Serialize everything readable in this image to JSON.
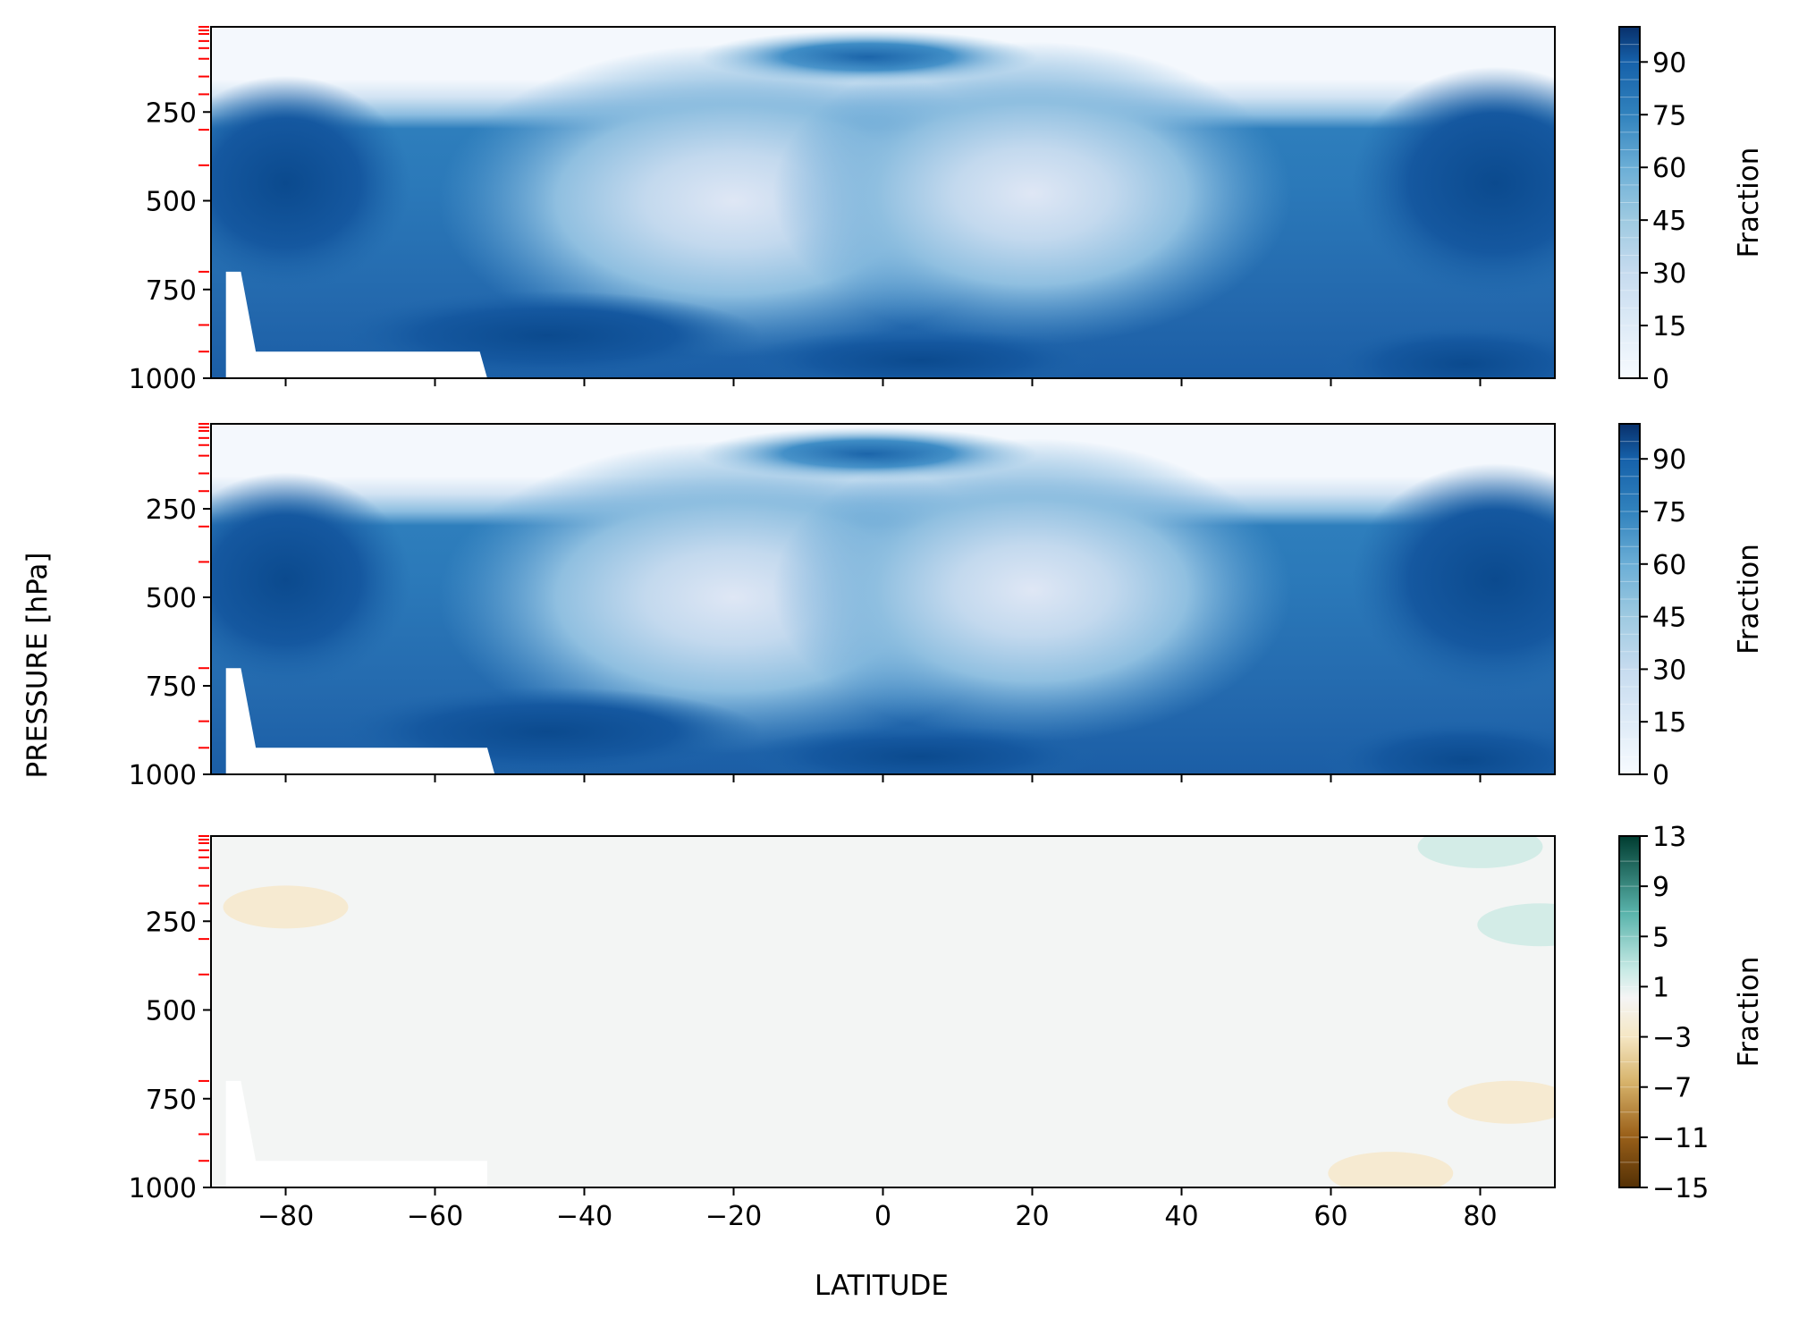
{
  "figure": {
    "ylabel": "PRESSURE [hPa]",
    "xlabel": "LATITUDE"
  },
  "chart_data": [
    {
      "type": "heatmap",
      "panel": "top",
      "x_range": [
        -90,
        90
      ],
      "y_range": [
        10,
        1000
      ],
      "y_inverted": true,
      "x_ticks": [
        -80,
        -60,
        -40,
        -20,
        0,
        20,
        40,
        60,
        80
      ],
      "x_tick_labels_shown": false,
      "y_ticks": [
        250,
        500,
        750,
        1000
      ],
      "y_tick_labels": [
        "250",
        "500",
        "750",
        "1000"
      ],
      "pressure_level_ticks": [
        10,
        20,
        30,
        50,
        70,
        100,
        150,
        200,
        300,
        400,
        700,
        850,
        925
      ],
      "pressure_level_tick_color": "#ff0000",
      "colormap": "Blues",
      "colorbar": {
        "label": "Fraction",
        "ticks": [
          0,
          15,
          30,
          45,
          60,
          75,
          90
        ],
        "tick_labels": [
          "0",
          "15",
          "30",
          "45",
          "60",
          "75",
          "90"
        ],
        "range": [
          0,
          100
        ],
        "levels": 20
      },
      "missing_region": [
        [
          -88,
          700
        ],
        [
          -86,
          700
        ],
        [
          -84,
          925
        ],
        [
          -54,
          925
        ],
        [
          -53,
          1000
        ],
        [
          -88,
          1000
        ]
      ]
    },
    {
      "type": "heatmap",
      "panel": "middle",
      "x_range": [
        -90,
        90
      ],
      "y_range": [
        10,
        1000
      ],
      "y_inverted": true,
      "x_ticks": [
        -80,
        -60,
        -40,
        -20,
        0,
        20,
        40,
        60,
        80
      ],
      "x_tick_labels_shown": false,
      "y_ticks": [
        250,
        500,
        750,
        1000
      ],
      "y_tick_labels": [
        "250",
        "500",
        "750",
        "1000"
      ],
      "pressure_level_ticks": [
        10,
        20,
        30,
        50,
        70,
        100,
        150,
        200,
        300,
        400,
        700,
        850,
        925
      ],
      "pressure_level_tick_color": "#ff0000",
      "colormap": "Blues",
      "colorbar": {
        "label": "Fraction",
        "ticks": [
          0,
          15,
          30,
          45,
          60,
          75,
          90
        ],
        "tick_labels": [
          "0",
          "15",
          "30",
          "45",
          "60",
          "75",
          "90"
        ],
        "range": [
          0,
          100
        ],
        "levels": 20
      },
      "missing_region": [
        [
          -88,
          700
        ],
        [
          -86,
          700
        ],
        [
          -84,
          925
        ],
        [
          -53,
          925
        ],
        [
          -52,
          1000
        ],
        [
          -88,
          1000
        ]
      ]
    },
    {
      "type": "heatmap",
      "panel": "bottom",
      "x_range": [
        -90,
        90
      ],
      "y_range": [
        10,
        1000
      ],
      "y_inverted": true,
      "x_ticks": [
        -80,
        -60,
        -40,
        -20,
        0,
        20,
        40,
        60,
        80
      ],
      "x_tick_labels": [
        "−80",
        "−60",
        "−40",
        "−20",
        "0",
        "20",
        "40",
        "60",
        "80"
      ],
      "y_ticks": [
        250,
        500,
        750,
        1000
      ],
      "y_tick_labels": [
        "250",
        "500",
        "750",
        "1000"
      ],
      "pressure_level_ticks": [
        10,
        20,
        30,
        50,
        70,
        100,
        150,
        200,
        300,
        400,
        700,
        850,
        925
      ],
      "pressure_level_tick_color": "#ff0000",
      "colormap": "BrBG",
      "colorbar": {
        "label": "Fraction",
        "ticks": [
          13,
          9,
          5,
          1,
          -3,
          -7,
          -11,
          -15
        ],
        "tick_labels": [
          "13",
          "9",
          "5",
          "1",
          "−3",
          "−7",
          "−11",
          "−15"
        ],
        "range": [
          -15,
          13
        ],
        "levels": 14
      },
      "background_value": 0,
      "anomalies": [
        {
          "lon": -80,
          "p": 210,
          "value": -2
        },
        {
          "lon": 80,
          "p": 40,
          "value": 2
        },
        {
          "lon": 88,
          "p": 260,
          "value": 2
        },
        {
          "lon": 84,
          "p": 760,
          "value": -2
        },
        {
          "lon": 68,
          "p": 960,
          "value": -2
        }
      ],
      "missing_region": [
        [
          -88,
          700
        ],
        [
          -86,
          700
        ],
        [
          -84,
          925
        ],
        [
          -53,
          925
        ],
        [
          -53,
          1000
        ],
        [
          -88,
          1000
        ]
      ]
    }
  ]
}
